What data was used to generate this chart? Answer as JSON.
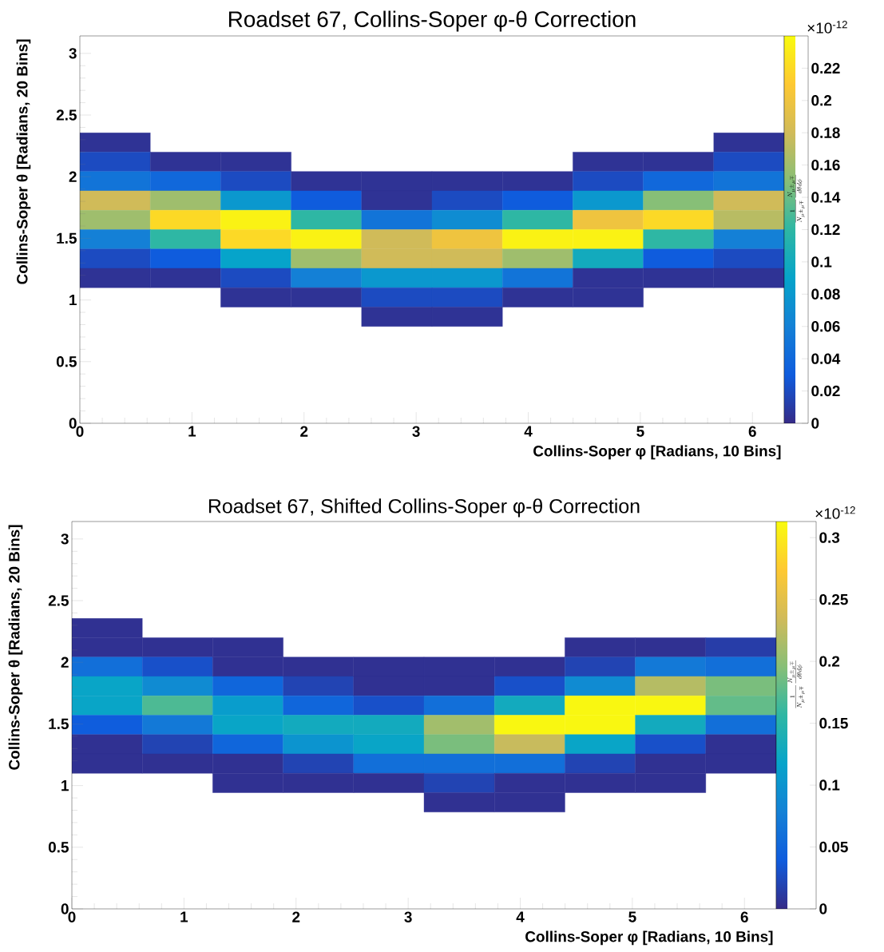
{
  "chart_data": [
    {
      "type": "heatmap",
      "title": "Roadset 67, Collins-Soper φ-θ Correction",
      "xlabel": "Collins-Soper  φ [Radians, 10 Bins]",
      "ylabel": "Collins-Soper  θ [Radians, 20 Bins]",
      "clabel": "\\frac{1}{N_{\\mu^{\\pm}\\mu^{\\mp}}}\\frac{N_{\\mu^{\\pm}\\mu^{\\mp}}}{d\\theta d\\phi}",
      "annotations": [
        "×10$^{-12}$"
      ],
      "xlim": [
        0,
        6.2832
      ],
      "ylim": [
        0,
        3.1416
      ],
      "xticks": [
        0,
        1,
        2,
        3,
        4,
        5,
        6
      ],
      "yticks": [
        0,
        0.5,
        1,
        1.5,
        2,
        2.5,
        3
      ],
      "x": [
        0.3142,
        0.9425,
        1.5708,
        2.1991,
        2.8274,
        3.4558,
        4.0841,
        4.7124,
        5.3407,
        5.969
      ],
      "y": [
        2.2777,
        2.1206,
        1.9635,
        1.8064,
        1.6493,
        1.4923,
        1.3352,
        1.1781,
        1.021,
        0.8639
      ],
      "clim": [
        0,
        0.24
      ],
      "cticks": [
        0,
        0.02,
        0.04,
        0.06,
        0.08,
        0.1,
        0.12,
        0.14,
        0.16,
        0.18,
        0.2,
        0.22
      ],
      "cells": [
        [
          0.005,
          null,
          null,
          null,
          null,
          null,
          null,
          null,
          null,
          0.005
        ],
        [
          0.02,
          0.005,
          0.005,
          null,
          null,
          null,
          null,
          0.005,
          0.005,
          0.02
        ],
        [
          0.05,
          0.04,
          0.02,
          0.005,
          0.005,
          0.005,
          0.005,
          0.02,
          0.04,
          0.05
        ],
        [
          0.18,
          0.16,
          0.08,
          0.03,
          0.005,
          0.02,
          0.03,
          0.08,
          0.15,
          0.18
        ],
        [
          0.16,
          0.22,
          0.235,
          0.12,
          0.05,
          0.07,
          0.12,
          0.2,
          0.22,
          0.17
        ],
        [
          0.06,
          0.12,
          0.22,
          0.235,
          0.18,
          0.2,
          0.235,
          0.235,
          0.12,
          0.06
        ],
        [
          0.02,
          0.03,
          0.09,
          0.16,
          0.18,
          0.18,
          0.16,
          0.1,
          0.03,
          0.02
        ],
        [
          0.005,
          0.005,
          0.02,
          0.06,
          0.08,
          0.08,
          0.05,
          0.005,
          0.005,
          0.005
        ],
        [
          null,
          null,
          0.005,
          0.005,
          0.02,
          0.02,
          0.005,
          0.005,
          null,
          null
        ],
        [
          null,
          null,
          null,
          null,
          0.005,
          0.005,
          null,
          null,
          null,
          null
        ]
      ]
    },
    {
      "type": "heatmap",
      "title": "Roadset 67, Shifted Collins-Soper φ-θ Correction",
      "xlabel": "Collins-Soper  φ [Radians, 10 Bins]",
      "ylabel": "Collins-Soper  θ [Radians, 20 Bins]",
      "clabel": "\\frac{1}{N_{\\mu^{\\pm}\\mu^{\\mp}}}\\frac{N_{\\mu^{\\pm}\\mu^{\\mp}}}{d\\theta d\\phi}",
      "annotations": [
        "×10$^{-12}$"
      ],
      "xlim": [
        0,
        6.2832
      ],
      "ylim": [
        0,
        3.1416
      ],
      "xticks": [
        0,
        1,
        2,
        3,
        4,
        5,
        6
      ],
      "yticks": [
        0,
        0.5,
        1,
        1.5,
        2,
        2.5,
        3
      ],
      "x": [
        0.3142,
        0.9425,
        1.5708,
        2.1991,
        2.8274,
        3.4558,
        4.0841,
        4.7124,
        5.3407,
        5.969
      ],
      "y": [
        2.2777,
        2.1206,
        1.9635,
        1.8064,
        1.6493,
        1.4923,
        1.3352,
        1.1781,
        1.021,
        0.8639
      ],
      "clim": [
        0,
        0.313
      ],
      "cticks": [
        0,
        0.05,
        0.1,
        0.15,
        0.2,
        0.25,
        0.3
      ],
      "cells": [
        [
          0.005,
          null,
          null,
          null,
          null,
          null,
          null,
          null,
          null,
          null
        ],
        [
          0.005,
          0.005,
          0.005,
          null,
          null,
          null,
          null,
          0.005,
          0.005,
          0.015
        ],
        [
          0.06,
          0.03,
          0.005,
          0.005,
          0.005,
          0.005,
          0.005,
          0.02,
          0.07,
          0.06
        ],
        [
          0.12,
          0.09,
          0.05,
          0.02,
          0.005,
          0.005,
          0.03,
          0.09,
          0.22,
          0.19
        ],
        [
          0.12,
          0.17,
          0.11,
          0.05,
          0.03,
          0.06,
          0.13,
          0.31,
          0.31,
          0.18
        ],
        [
          0.04,
          0.07,
          0.12,
          0.13,
          0.13,
          0.21,
          0.31,
          0.31,
          0.13,
          0.06
        ],
        [
          0.005,
          0.02,
          0.05,
          0.1,
          0.12,
          0.19,
          0.23,
          0.12,
          0.03,
          0.005
        ],
        [
          0.005,
          0.005,
          0.005,
          0.02,
          0.06,
          0.06,
          0.06,
          0.02,
          0.005,
          0.005
        ],
        [
          null,
          null,
          0.005,
          0.005,
          0.005,
          0.02,
          0.005,
          0.005,
          0.005,
          null
        ],
        [
          null,
          null,
          null,
          null,
          null,
          0.005,
          0.005,
          null,
          null,
          null
        ]
      ]
    }
  ]
}
